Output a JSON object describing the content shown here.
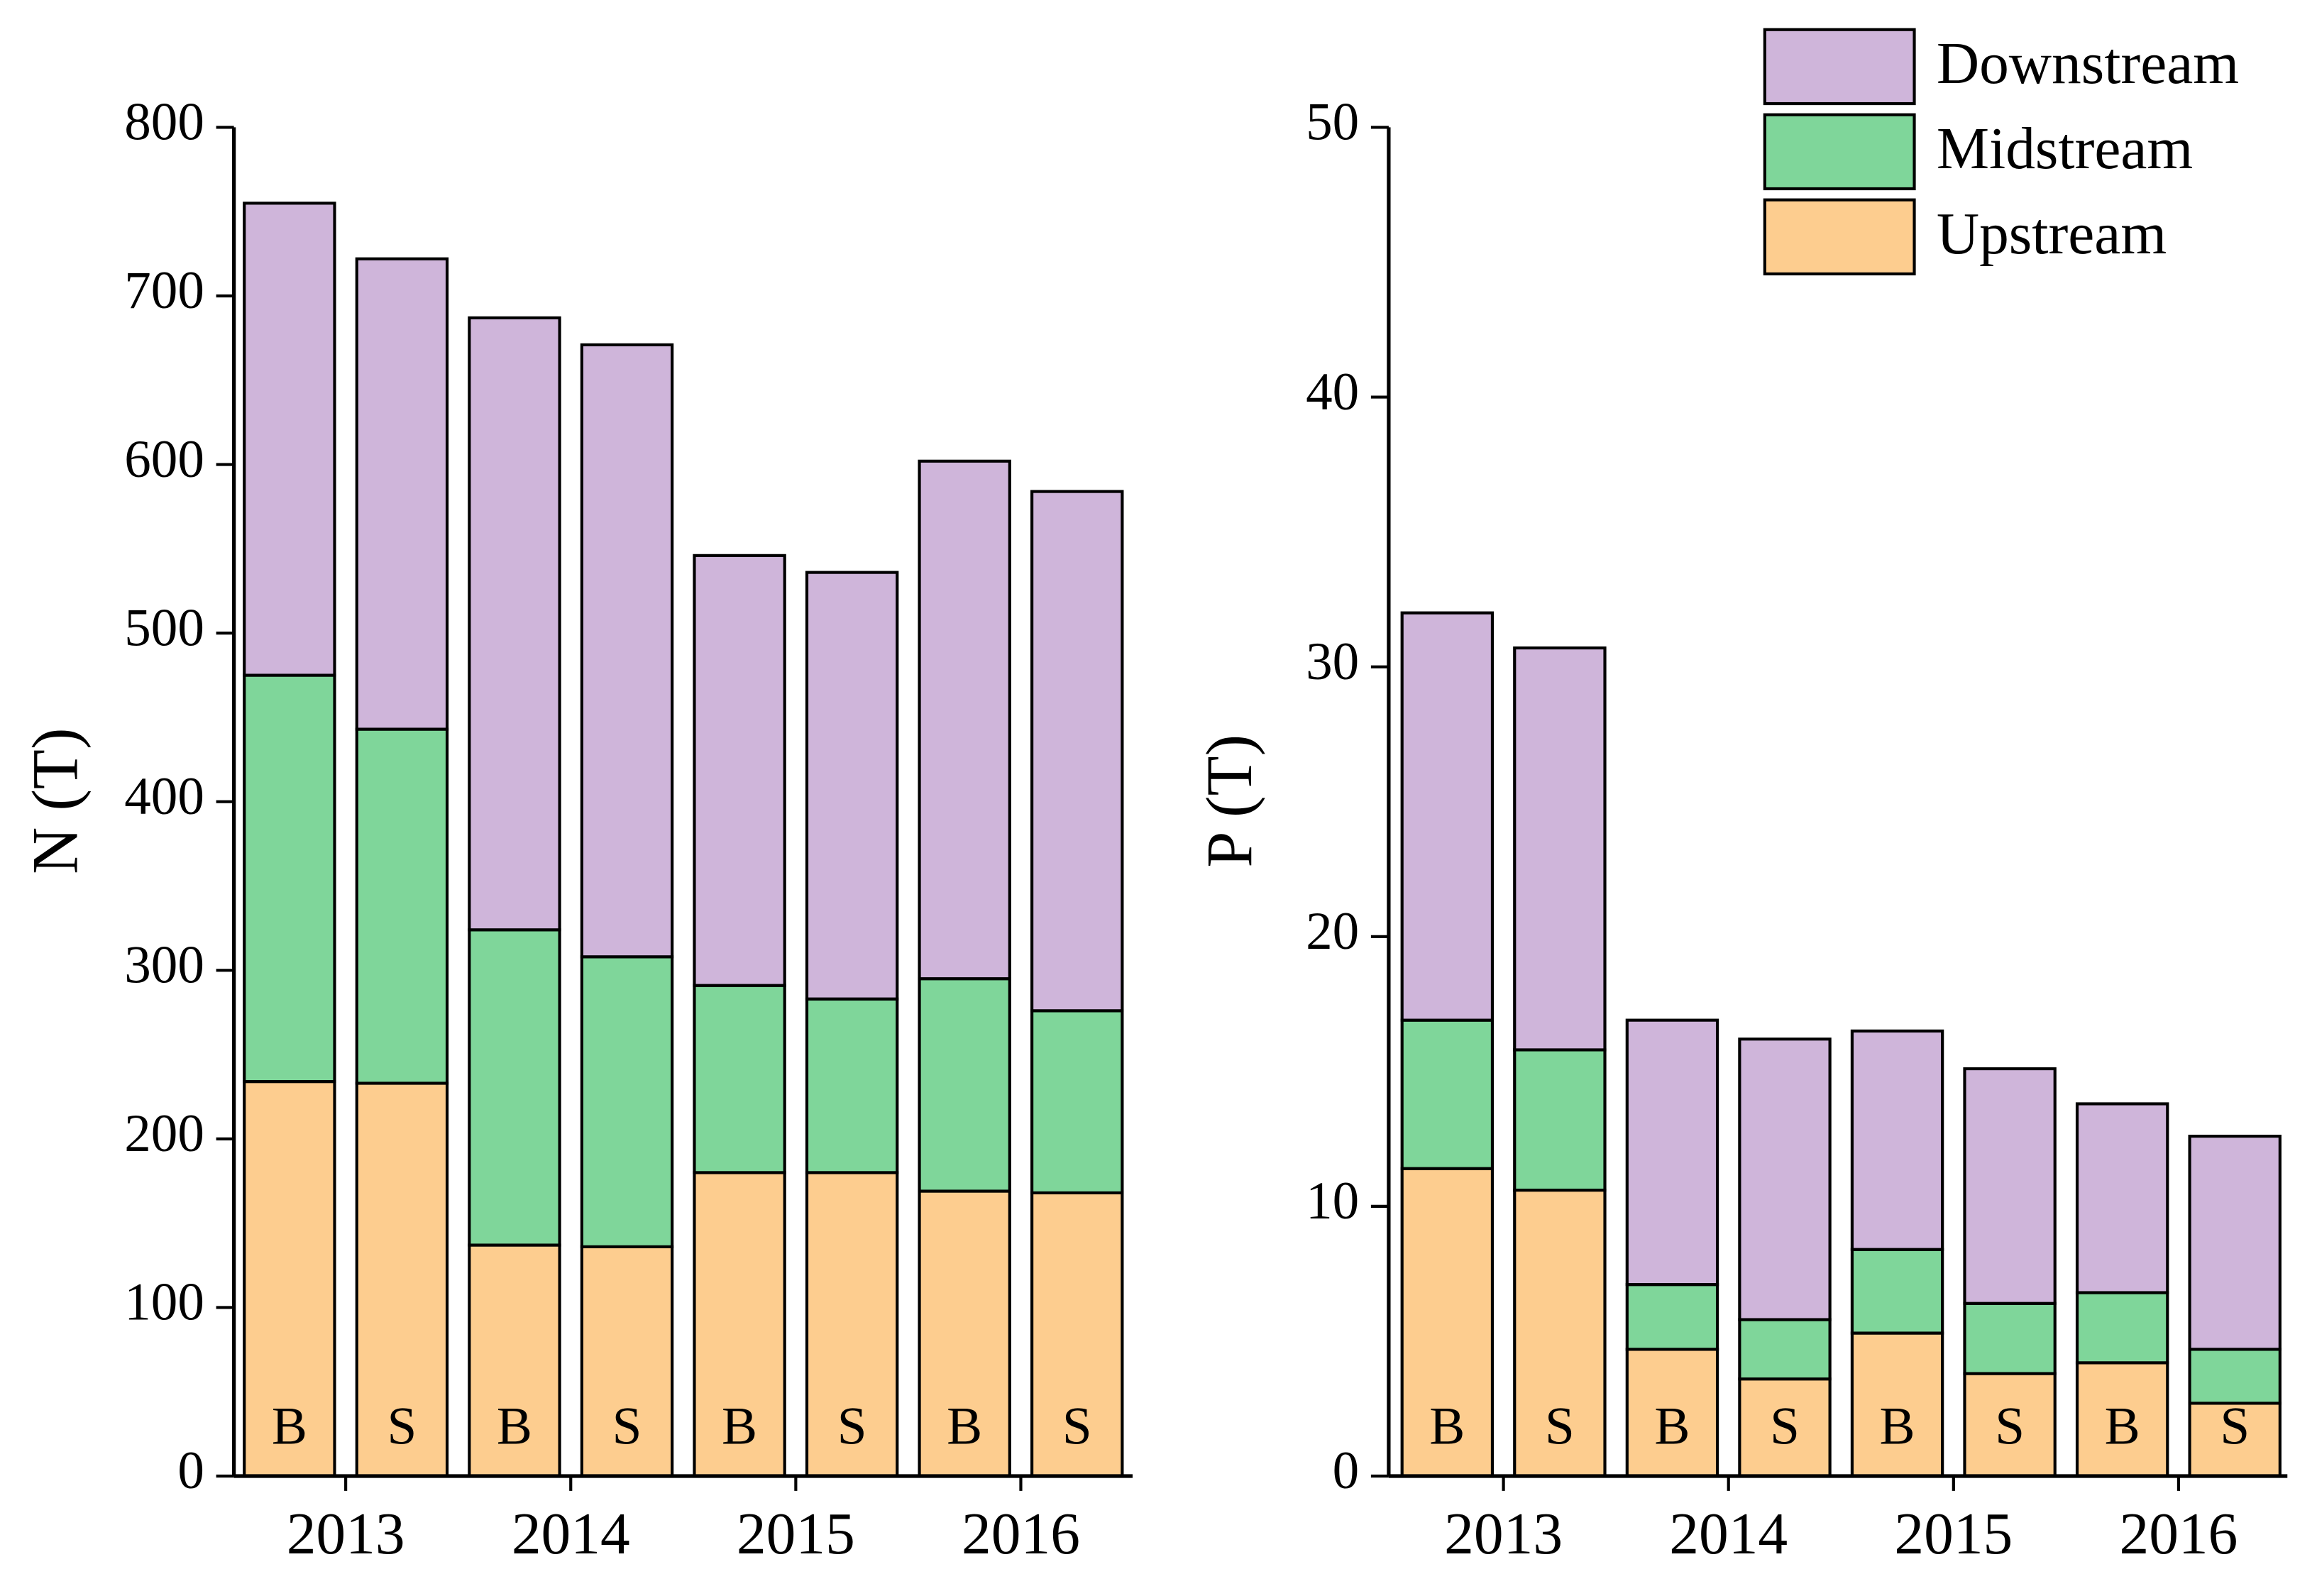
{
  "chart_data": [
    {
      "type": "bar",
      "stacked": true,
      "y_label": "N (T)",
      "categories": [
        "B",
        "S",
        "B",
        "S",
        "B",
        "S",
        "B",
        "S"
      ],
      "groups": [
        "2013",
        "2014",
        "2015",
        "2016"
      ],
      "series": [
        {
          "name": "Upstream",
          "color": "#fdcd8f",
          "values": [
            234,
            233,
            137,
            136,
            180,
            180,
            169,
            168
          ]
        },
        {
          "name": "Midstream",
          "color": "#7fd69a",
          "values": [
            241,
            210,
            187,
            172,
            111,
            103,
            126,
            108
          ]
        },
        {
          "name": "Downstream",
          "color": "#cfb5da",
          "values": [
            280,
            279,
            363,
            363,
            255,
            253,
            307,
            308
          ]
        }
      ],
      "ylim": [
        0,
        800
      ],
      "yticks": [
        0,
        100,
        200,
        300,
        400,
        500,
        600,
        700,
        800
      ]
    },
    {
      "type": "bar",
      "stacked": true,
      "y_label": "P (T)",
      "categories": [
        "B",
        "S",
        "B",
        "S",
        "B",
        "S",
        "B",
        "S"
      ],
      "groups": [
        "2013",
        "2014",
        "2015",
        "2016"
      ],
      "series": [
        {
          "name": "Upstream",
          "color": "#fdcd8f",
          "values": [
            11.4,
            10.6,
            4.7,
            3.6,
            5.3,
            3.8,
            4.2,
            2.7
          ]
        },
        {
          "name": "Midstream",
          "color": "#7fd69a",
          "values": [
            5.5,
            5.2,
            2.4,
            2.2,
            3.1,
            2.6,
            2.6,
            2.0
          ]
        },
        {
          "name": "Downstream",
          "color": "#cfb5da",
          "values": [
            15.1,
            14.9,
            9.8,
            10.4,
            8.1,
            8.7,
            7.0,
            7.9
          ]
        }
      ],
      "ylim": [
        0,
        50
      ],
      "yticks": [
        0,
        10,
        20,
        30,
        40,
        50
      ],
      "legend": "upper right"
    }
  ]
}
